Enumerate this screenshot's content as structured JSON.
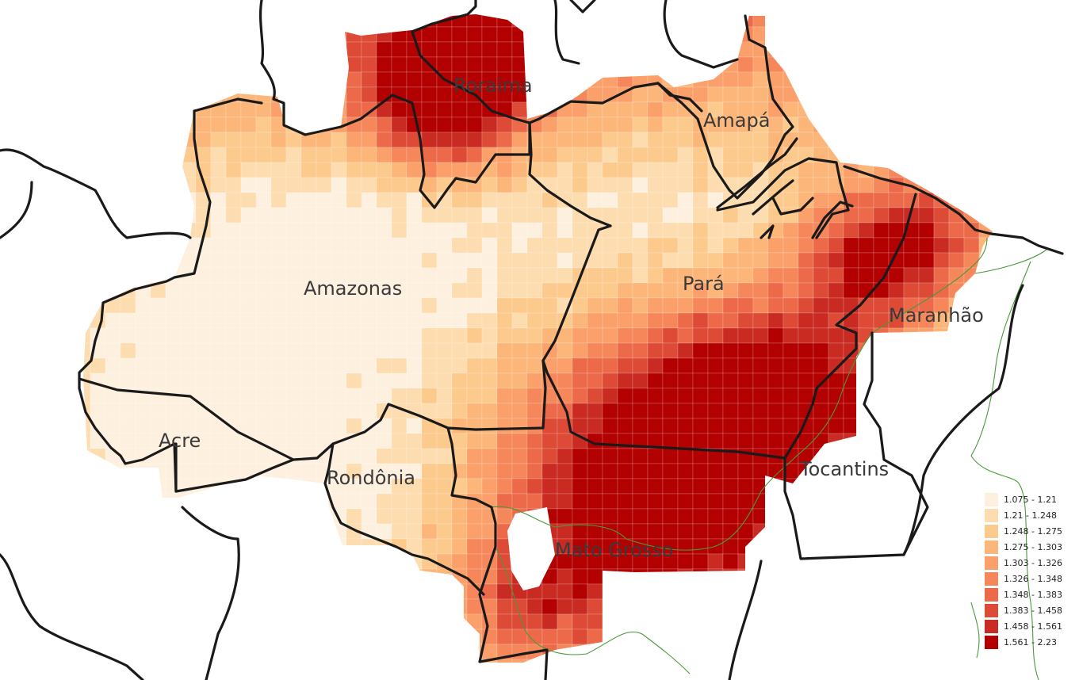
{
  "map": {
    "state_labels": [
      {
        "id": "roraima",
        "text": "Roraima"
      },
      {
        "id": "amapa",
        "text": "Amapá"
      },
      {
        "id": "amazonas",
        "text": "Amazonas"
      },
      {
        "id": "para",
        "text": "Pará"
      },
      {
        "id": "maranhao",
        "text": "Maranhão"
      },
      {
        "id": "acre",
        "text": "Acre"
      },
      {
        "id": "rondonia",
        "text": "Rondônia"
      },
      {
        "id": "tocantins",
        "text": "Tocantins"
      },
      {
        "id": "mato-grosso",
        "text": "Mato Grosso"
      }
    ],
    "legend": {
      "classes": [
        {
          "label": "1.075 - 1.21",
          "color": "#fef0df"
        },
        {
          "label": "1.21 - 1.248",
          "color": "#fddcb0"
        },
        {
          "label": "1.248 - 1.275",
          "color": "#fdca8e"
        },
        {
          "label": "1.275 - 1.303",
          "color": "#fcb67a"
        },
        {
          "label": "1.303 - 1.326",
          "color": "#fba06a"
        },
        {
          "label": "1.326 - 1.348",
          "color": "#f6875a"
        },
        {
          "label": "1.348 - 1.383",
          "color": "#ec6a49"
        },
        {
          "label": "1.383 - 1.458",
          "color": "#dd4a36"
        },
        {
          "label": "1.458 - 1.561",
          "color": "#c92a22"
        },
        {
          "label": "1.561 - 2.23",
          "color": "#b30000"
        }
      ]
    },
    "colors": {
      "boundary": "#1a1a1a",
      "biome_line": "#4a9a3a"
    }
  }
}
